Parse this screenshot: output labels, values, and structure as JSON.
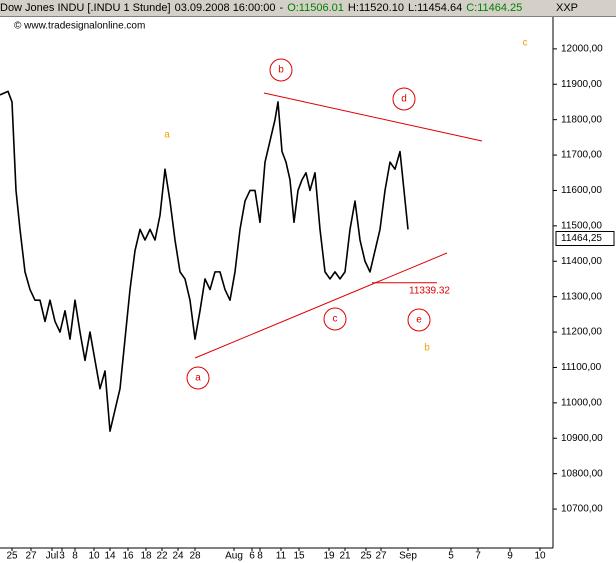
{
  "header": {
    "instrument": "Dow Jones INDU [.INDU  1 Stunde]",
    "datetime": "03.09.2008 16:00:00",
    "open": "O:11506.01",
    "high": "H:11520.10",
    "low": "L:11454.64",
    "close": "C:11464.25",
    "symbol": "XXP"
  },
  "chart_data": {
    "type": "line",
    "watermark": "© www.tradesignalonline.com",
    "x": [
      0,
      8,
      12,
      16,
      20,
      25,
      30,
      35,
      40,
      45,
      50,
      55,
      60,
      65,
      70,
      75,
      80,
      85,
      90,
      95,
      100,
      105,
      110,
      115,
      120,
      125,
      130,
      135,
      140,
      145,
      150,
      155,
      160,
      165,
      170,
      175,
      180,
      185,
      190,
      195,
      200,
      205,
      210,
      215,
      220,
      225,
      230,
      235,
      240,
      245,
      250,
      255,
      260,
      265,
      270,
      275,
      278,
      282,
      286,
      290,
      294,
      298,
      302,
      306,
      310,
      315,
      320,
      325,
      330,
      335,
      340,
      345,
      350,
      355,
      360,
      365,
      370,
      375,
      380,
      385,
      390,
      395,
      400,
      404,
      408
    ],
    "series": [
      {
        "name": "Dow Jones INDU",
        "color": "#000000",
        "values": [
          11870,
          11880,
          11850,
          11600,
          11490,
          11370,
          11320,
          11290,
          11290,
          11230,
          11290,
          11230,
          11200,
          11260,
          11180,
          11290,
          11200,
          11120,
          11200,
          11120,
          11040,
          11090,
          10920,
          10980,
          11040,
          11180,
          11320,
          11430,
          11490,
          11460,
          11490,
          11460,
          11530,
          11660,
          11570,
          11460,
          11370,
          11350,
          11290,
          11180,
          11260,
          11350,
          11320,
          11370,
          11370,
          11320,
          11290,
          11370,
          11490,
          11570,
          11600,
          11600,
          11510,
          11680,
          11740,
          11800,
          11850,
          11710,
          11680,
          11630,
          11510,
          11600,
          11630,
          11650,
          11600,
          11650,
          11490,
          11370,
          11350,
          11370,
          11350,
          11370,
          11490,
          11570,
          11460,
          11400,
          11370,
          11430,
          11490,
          11600,
          11680,
          11660,
          11710,
          11600,
          11490
        ]
      }
    ],
    "xlim": [
      0,
      553
    ],
    "ylim": [
      10590,
      12090
    ],
    "xticks": [
      {
        "value": 12,
        "label": "25"
      },
      {
        "value": 31,
        "label": "27"
      },
      {
        "value": 52,
        "label": "Jul"
      },
      {
        "value": 62,
        "label": "3"
      },
      {
        "value": 75,
        "label": "8"
      },
      {
        "value": 94,
        "label": "10"
      },
      {
        "value": 110,
        "label": "14"
      },
      {
        "value": 128,
        "label": "16"
      },
      {
        "value": 146,
        "label": "18"
      },
      {
        "value": 162,
        "label": "22"
      },
      {
        "value": 178,
        "label": "24"
      },
      {
        "value": 195,
        "label": "28"
      },
      {
        "value": 234,
        "label": "Aug"
      },
      {
        "value": 252,
        "label": "6"
      },
      {
        "value": 260,
        "label": "8"
      },
      {
        "value": 281,
        "label": "11"
      },
      {
        "value": 299,
        "label": "15"
      },
      {
        "value": 329,
        "label": "19"
      },
      {
        "value": 345,
        "label": "21"
      },
      {
        "value": 366,
        "label": "25"
      },
      {
        "value": 381,
        "label": "27"
      },
      {
        "value": 408,
        "label": "Sep"
      },
      {
        "value": 451,
        "label": "5"
      },
      {
        "value": 478,
        "label": "7"
      },
      {
        "value": 510,
        "label": "9"
      },
      {
        "value": 540,
        "label": "10"
      }
    ],
    "yticks": [
      {
        "value": 10700,
        "label": "10700,00"
      },
      {
        "value": 10800,
        "label": "10800,00"
      },
      {
        "value": 10900,
        "label": "10900,00"
      },
      {
        "value": 11000,
        "label": "11000,00"
      },
      {
        "value": 11100,
        "label": "11100,00"
      },
      {
        "value": 11200,
        "label": "11200,00"
      },
      {
        "value": 11300,
        "label": "11300,00"
      },
      {
        "value": 11400,
        "label": "11400,00"
      },
      {
        "value": 11500,
        "label": "11500,00"
      },
      {
        "value": 11600,
        "label": "11600,00"
      },
      {
        "value": 11700,
        "label": "11700,00"
      },
      {
        "value": 11800,
        "label": "11800,00"
      },
      {
        "value": 11900,
        "label": "11900,00"
      },
      {
        "value": 12000,
        "label": "12000,00"
      }
    ],
    "last_price": {
      "value": 11464.25,
      "label": "11464,25"
    },
    "support_level": {
      "value": 11339.32,
      "label": "11339.32"
    },
    "wave_labels": [
      "a",
      "b",
      "c",
      "d",
      "e"
    ],
    "wave_color": "#e00000",
    "degree_labels": [
      "a",
      "b",
      "c"
    ],
    "degree_color": "#f5a000"
  }
}
